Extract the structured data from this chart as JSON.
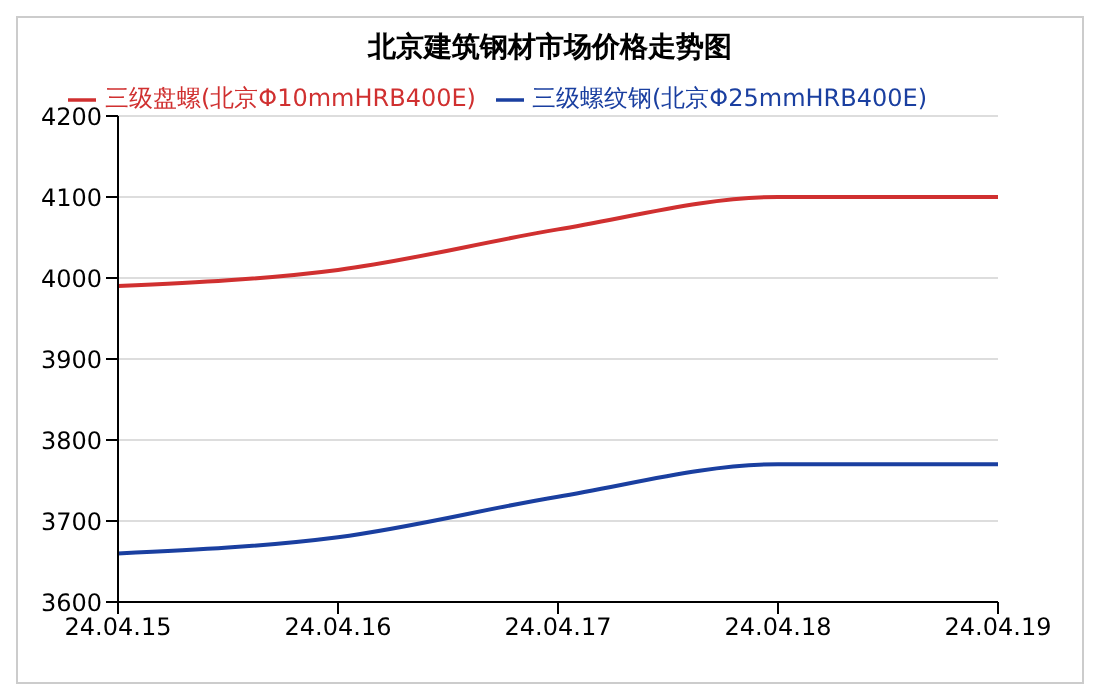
{
  "chart_data": {
    "type": "line",
    "title": "北京建筑钢材市场价格走势图",
    "categories": [
      "24.04.15",
      "24.04.16",
      "24.04.17",
      "24.04.18",
      "24.04.19"
    ],
    "series": [
      {
        "name": "三级盘螺(北京Φ10mmHRB400E)",
        "color": "#d03030",
        "values": [
          3990,
          4010,
          4060,
          4100,
          4100
        ]
      },
      {
        "name": "三级螺纹钢(北京Φ25mmHRB400E)",
        "color": "#1a3fa0",
        "values": [
          3660,
          3680,
          3730,
          3770,
          3770
        ]
      }
    ],
    "ylim": [
      3600,
      4200
    ],
    "yticks": [
      3600,
      3700,
      3800,
      3900,
      4000,
      4100,
      4200
    ],
    "grid": "y",
    "legend": "top",
    "marker": "none",
    "line_style": "solid"
  }
}
